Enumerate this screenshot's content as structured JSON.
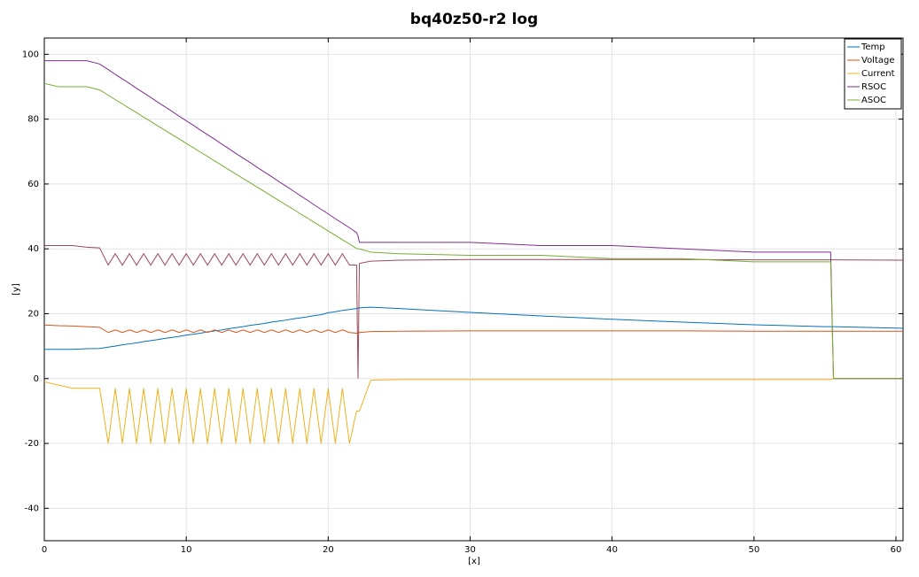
{
  "chart_data": {
    "type": "line",
    "title": "bq40z50-r2 log",
    "xlabel": "[x]",
    "ylabel": "[y]",
    "x": [
      0,
      1,
      2,
      3,
      3.9,
      4.5,
      5,
      5.5,
      6,
      6.5,
      7,
      7.5,
      8,
      8.5,
      9,
      9.5,
      10,
      10.5,
      11,
      11.5,
      12,
      12.5,
      13,
      13.5,
      14,
      14.5,
      15,
      15.5,
      16,
      16.5,
      17,
      17.5,
      18,
      18.5,
      19,
      19.5,
      20,
      20.5,
      21,
      21.5,
      22,
      22.1,
      22.2,
      23,
      25,
      30,
      35,
      40,
      45,
      50,
      55,
      55.4,
      55.6,
      60.5
    ],
    "series": [
      {
        "color": "#9a4a5a",
        "values": [
          41,
          41,
          41,
          40.5,
          40.3,
          35,
          38.5,
          35,
          38.5,
          35,
          38.5,
          35,
          38.5,
          35,
          38.5,
          35,
          38.5,
          35,
          38.5,
          35,
          38.5,
          35,
          38.5,
          35,
          38.5,
          35,
          38.5,
          35,
          38.5,
          35,
          38.5,
          35,
          38.5,
          35,
          38.5,
          35,
          38.5,
          35,
          38.5,
          35,
          35,
          0,
          35.5,
          36.2,
          36.5,
          36.7,
          36.7,
          36.7,
          36.7,
          36.6,
          36.6,
          36.6,
          36.6,
          36.5
        ]
      },
      {
        "name": "Temp",
        "color": "#0072bd",
        "values": [
          9,
          9,
          9,
          9.2,
          9.3,
          9.7,
          10,
          10.4,
          10.7,
          11,
          11.4,
          11.7,
          12,
          12.4,
          12.7,
          13,
          13.4,
          13.7,
          14,
          14.4,
          14.7,
          15,
          15.4,
          15.7,
          16,
          16.4,
          16.7,
          17,
          17.4,
          17.7,
          18,
          18.4,
          18.7,
          19,
          19.4,
          19.7,
          20.3,
          20.6,
          21,
          21.3,
          21.6,
          21.7,
          21.8,
          22,
          21.6,
          20.4,
          19.3,
          18.3,
          17.4,
          16.6,
          16,
          16,
          16,
          15.5
        ]
      },
      {
        "name": "Voltage",
        "color": "#d95319",
        "values": [
          16.5,
          16.3,
          16.2,
          16,
          15.8,
          14.2,
          15,
          14.2,
          15,
          14.2,
          15,
          14.2,
          15,
          14.2,
          15,
          14.2,
          15,
          14.2,
          15,
          14.2,
          15,
          14.2,
          15,
          14.2,
          15,
          14.2,
          15,
          14.2,
          15,
          14.2,
          15,
          14.2,
          15,
          14.2,
          15,
          14.2,
          15,
          14.2,
          15,
          14.2,
          14,
          14,
          14.2,
          14.5,
          14.6,
          14.7,
          14.7,
          14.7,
          14.7,
          14.6,
          14.6,
          14.6,
          14.6,
          14.6
        ]
      },
      {
        "name": "Current",
        "color": "#edb120",
        "values": [
          -1,
          -2,
          -3,
          -3,
          -3,
          -20,
          -3,
          -20,
          -3,
          -20,
          -3,
          -20,
          -3,
          -20,
          -3,
          -20,
          -3,
          -20,
          -3,
          -20,
          -3,
          -20,
          -3,
          -20,
          -3,
          -20,
          -3,
          -20,
          -3,
          -20,
          -3,
          -20,
          -3,
          -20,
          -3,
          -20,
          -3,
          -20,
          -3,
          -20,
          -10,
          -10,
          -10,
          -0.5,
          -0.3,
          -0.3,
          -0.3,
          -0.3,
          -0.3,
          -0.3,
          -0.3,
          -0.3,
          0,
          0
        ]
      },
      {
        "name": "RSOC",
        "color": "#7e2f8e",
        "values": [
          98,
          98,
          98,
          98,
          97,
          95.3,
          93.8,
          92.4,
          91,
          89.5,
          88.1,
          86.7,
          85.2,
          83.8,
          82.4,
          80.9,
          79.5,
          78.1,
          76.6,
          75.2,
          73.8,
          72.3,
          70.9,
          69.4,
          68,
          66.6,
          65.1,
          63.7,
          62.3,
          60.8,
          59.4,
          58,
          56.5,
          55.1,
          53.6,
          52.2,
          50.8,
          49.3,
          47.9,
          46.5,
          45,
          44,
          42,
          42,
          42,
          42,
          41,
          41,
          40,
          39,
          39,
          39,
          0,
          0
        ]
      },
      {
        "name": "ASOC",
        "color": "#77ac30",
        "values": [
          91,
          90,
          90,
          90,
          89,
          87.4,
          86,
          84.7,
          83.3,
          82,
          80.6,
          79.3,
          77.9,
          76.6,
          75.2,
          73.9,
          72.5,
          71.2,
          69.8,
          68.5,
          67.1,
          65.8,
          64.4,
          63.1,
          61.7,
          60.4,
          59,
          57.7,
          56.3,
          55,
          53.6,
          52.3,
          50.9,
          49.6,
          48.2,
          46.9,
          45.5,
          44.2,
          42.8,
          41.5,
          40.1,
          40,
          40,
          39,
          38.5,
          38,
          38,
          37,
          37,
          36,
          36,
          36,
          0,
          0
        ]
      }
    ],
    "xlim": [
      0,
      60.5
    ],
    "ylim": [
      -50,
      105
    ],
    "xticks": [
      0,
      10,
      20,
      30,
      40,
      50,
      60
    ],
    "yticks": [
      -40,
      -20,
      0,
      20,
      40,
      60,
      80,
      100
    ],
    "grid": true,
    "legend": "upper right"
  }
}
